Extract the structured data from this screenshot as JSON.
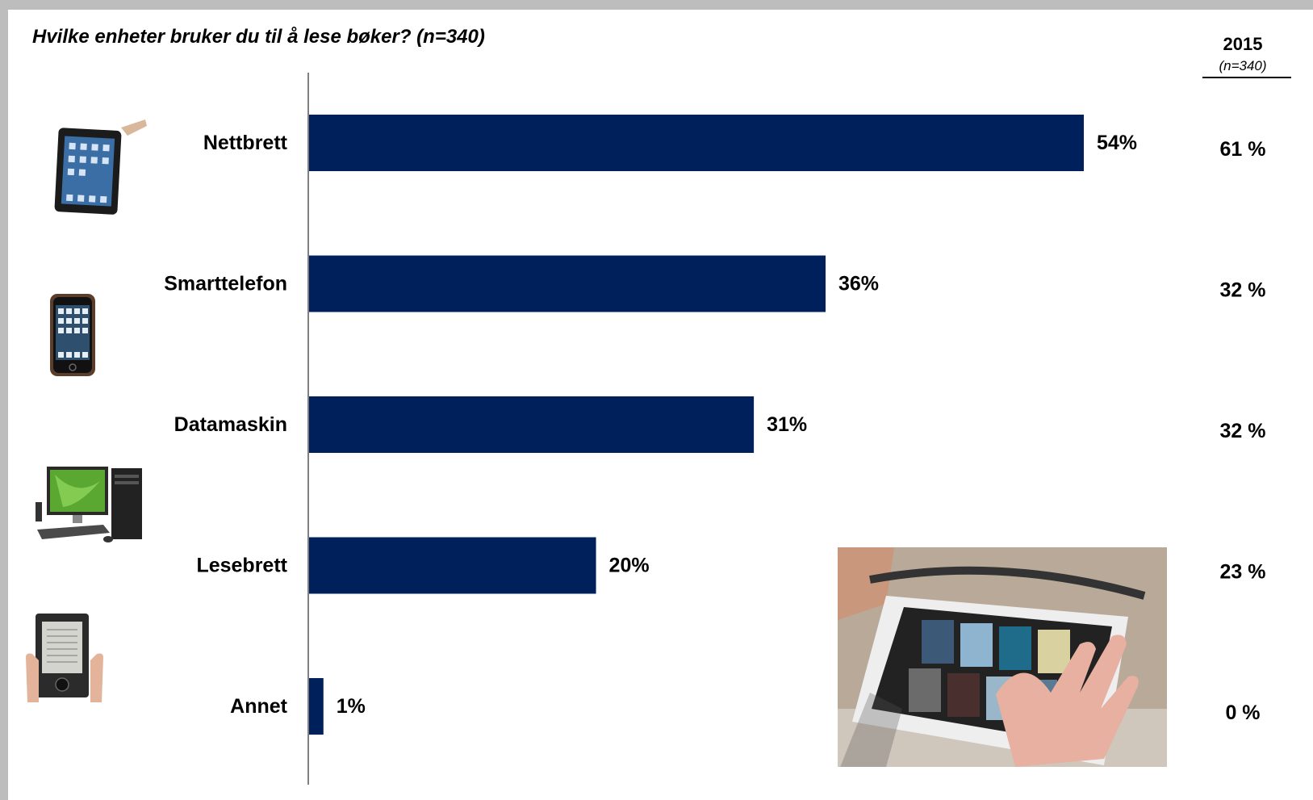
{
  "title": "Hvilke enheter bruker du til å lese bøker? (n=340)",
  "comparison_column": {
    "year": "2015",
    "n": "(n=340)",
    "values": [
      "61 %",
      "32 %",
      "32 %",
      "23 %",
      "0 %"
    ]
  },
  "chart_data": {
    "type": "bar",
    "orientation": "horizontal",
    "categories": [
      "Nettbrett",
      "Smarttelefon",
      "Datamaskin",
      "Lesebrett",
      "Annet"
    ],
    "values": [
      54,
      36,
      31,
      20,
      1
    ],
    "value_labels": [
      "54%",
      "36%",
      "31%",
      "20%",
      "1%"
    ],
    "title": "Hvilke enheter bruker du til å lese bøker? (n=340)",
    "xlim": [
      0,
      70
    ],
    "grid": false,
    "bar_color": "#00205b"
  },
  "icons": [
    "tablet-icon",
    "smartphone-icon",
    "desktop-computer-icon",
    "ereader-icon"
  ],
  "colors": {
    "bar": "#00205b",
    "text": "#000000",
    "background": "#ffffff"
  }
}
